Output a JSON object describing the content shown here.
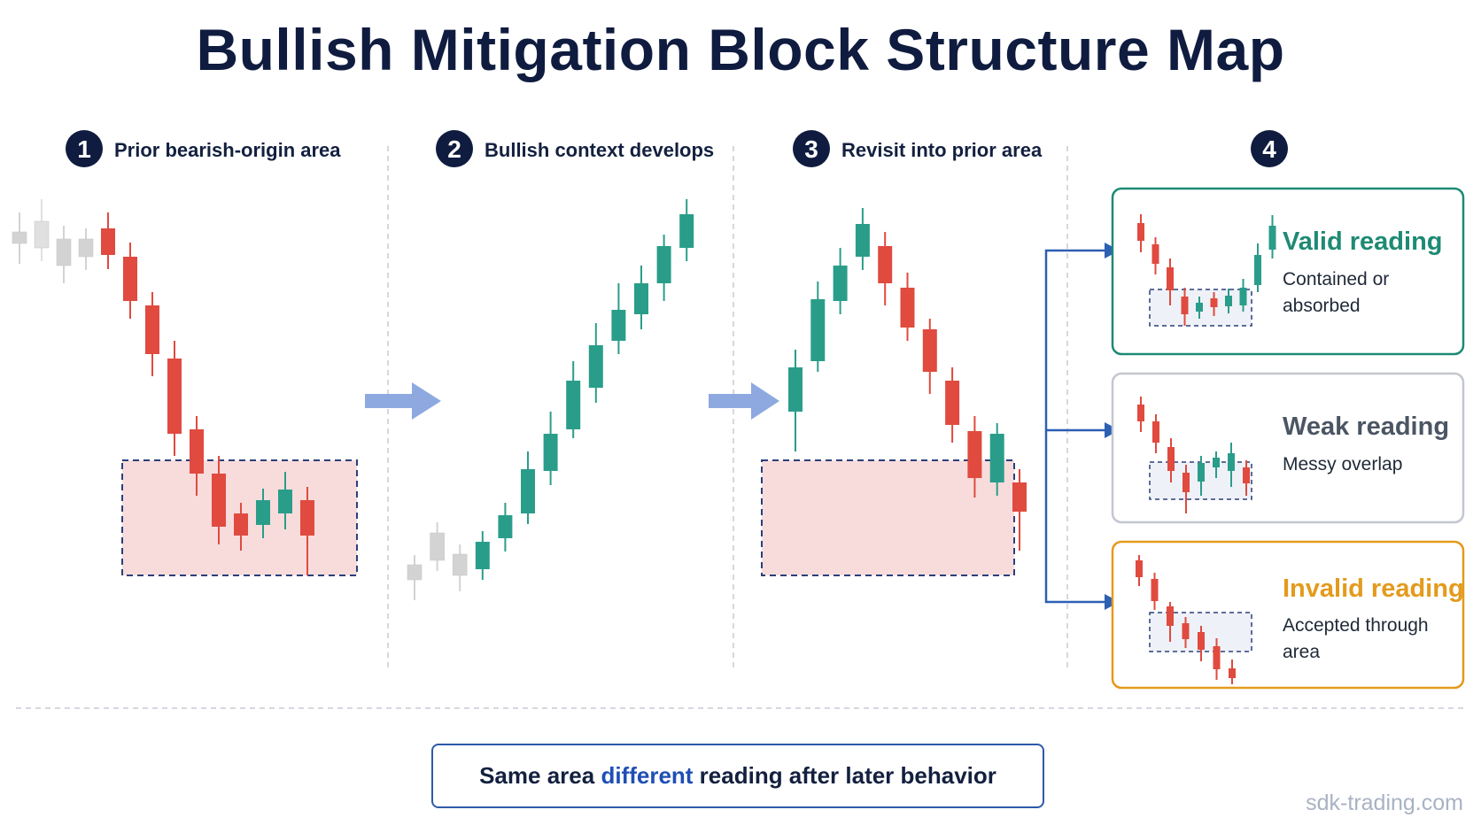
{
  "title": "Bullish Mitigation Block Structure Map",
  "steps": [
    {
      "number": "1",
      "label": "Prior bearish-origin area"
    },
    {
      "number": "2",
      "label": "Bullish context develops"
    },
    {
      "number": "3",
      "label": "Revisit into prior area"
    },
    {
      "number": "4",
      "label": ""
    }
  ],
  "outcomes": [
    {
      "title": "Valid reading",
      "desc_line1": "Contained or",
      "desc_line2": "absorbed",
      "color": "#1e8a74"
    },
    {
      "title": "Weak reading",
      "desc_line1": "Messy overlap",
      "desc_line2": "",
      "color": "#4b5563"
    },
    {
      "title": "Invalid reading",
      "desc_line1": "Accepted through",
      "desc_line2": "area",
      "color": "#e49a1c"
    }
  ],
  "summary": {
    "part1": "Same area",
    "highlight": "different",
    "part2": "reading after later behavior"
  },
  "watermark": "sdk-trading.com",
  "colors": {
    "bull": "#2a9d8a",
    "bear": "#e04a3f",
    "neutral": "#d3d3d3",
    "zone_fill": "#f8dcdc",
    "zone_border": "#2b3f7a",
    "navy": "#0f1c3f",
    "arrow": "#8ea9e0",
    "bracket": "#2d5fb3"
  },
  "candles": {
    "panel1": [
      [
        0,
        262,
        275,
        240,
        298,
        "n"
      ],
      [
        0,
        250,
        280,
        225,
        295,
        "o"
      ],
      [
        0,
        270,
        300,
        255,
        320,
        "n"
      ],
      [
        0,
        270,
        290,
        258,
        305,
        "n"
      ],
      [
        0,
        258,
        288,
        240,
        304,
        "b"
      ],
      [
        0,
        290,
        340,
        274,
        360,
        "b"
      ],
      [
        0,
        345,
        400,
        330,
        425,
        "b"
      ],
      [
        0,
        405,
        490,
        385,
        515,
        "b"
      ],
      [
        0,
        485,
        535,
        470,
        560,
        "b"
      ],
      [
        0,
        535,
        595,
        515,
        615,
        "b"
      ],
      [
        0,
        580,
        605,
        568,
        622,
        "b"
      ],
      [
        0,
        565,
        593,
        552,
        608,
        "u"
      ],
      [
        0,
        553,
        580,
        533,
        598,
        "u"
      ],
      [
        0,
        565,
        605,
        550,
        650,
        "b"
      ]
    ],
    "panel2": [
      [
        0,
        638,
        655,
        627,
        678,
        "n"
      ],
      [
        0,
        602,
        633,
        590,
        645,
        "n"
      ],
      [
        0,
        626,
        650,
        615,
        668,
        "n"
      ],
      [
        0,
        612,
        643,
        600,
        655,
        "u"
      ],
      [
        0,
        582,
        608,
        568,
        623,
        "u"
      ],
      [
        0,
        530,
        580,
        510,
        592,
        "u"
      ],
      [
        0,
        490,
        532,
        465,
        548,
        "u"
      ],
      [
        0,
        430,
        485,
        408,
        495,
        "u"
      ],
      [
        0,
        390,
        438,
        365,
        455,
        "u"
      ],
      [
        0,
        350,
        385,
        320,
        400,
        "u"
      ],
      [
        0,
        320,
        355,
        300,
        372,
        "u"
      ],
      [
        0,
        278,
        320,
        265,
        340,
        "u"
      ],
      [
        0,
        242,
        280,
        225,
        295,
        "u"
      ]
    ],
    "panel3": [
      [
        0,
        415,
        465,
        395,
        510,
        "u"
      ],
      [
        0,
        338,
        408,
        318,
        420,
        "u"
      ],
      [
        0,
        300,
        340,
        280,
        355,
        "u"
      ],
      [
        0,
        253,
        290,
        235,
        305,
        "u"
      ],
      [
        0,
        278,
        320,
        262,
        345,
        "b"
      ],
      [
        0,
        325,
        370,
        308,
        385,
        "b"
      ],
      [
        0,
        372,
        420,
        360,
        445,
        "b"
      ],
      [
        0,
        430,
        480,
        415,
        500,
        "b"
      ],
      [
        0,
        487,
        540,
        470,
        562,
        "b"
      ],
      [
        0,
        490,
        545,
        478,
        560,
        "u"
      ],
      [
        0,
        545,
        578,
        530,
        622,
        "b"
      ]
    ]
  }
}
